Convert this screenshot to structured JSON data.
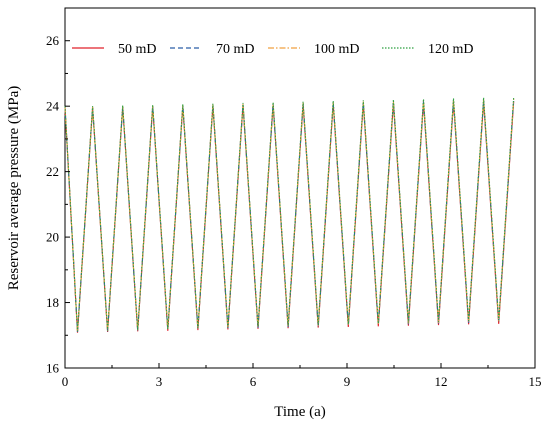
{
  "chart_data": {
    "type": "line",
    "xlabel": "Time (a)",
    "ylabel": "Reservoir average pressure (MPa)",
    "xlim": [
      0,
      15
    ],
    "ylim": [
      16,
      27
    ],
    "xticks": [
      "0",
      "3",
      "6",
      "9",
      "12",
      "15"
    ],
    "yticks": [
      "16",
      "18",
      "20",
      "22",
      "24",
      "26"
    ],
    "grid": false,
    "legend_position": "top",
    "cycle": {
      "count": 15,
      "first_trough_time": 0.4,
      "period": 0.96
    },
    "series": [
      {
        "name": "50 mD",
        "color": "#e0202a",
        "dash": "solid",
        "peak_start": 23.95,
        "peak_end": 24.15,
        "trough_start": 17.08,
        "trough_end": 17.35
      },
      {
        "name": "70 mD",
        "color": "#2a5ea8",
        "dash": "dashed",
        "peak_start": 23.97,
        "peak_end": 24.2,
        "trough_start": 17.1,
        "trough_end": 17.4
      },
      {
        "name": "100 mD",
        "color": "#f0a040",
        "dash": "dashdot",
        "peak_start": 23.98,
        "peak_end": 24.23,
        "trough_start": 17.11,
        "trough_end": 17.43
      },
      {
        "name": "120 mD",
        "color": "#2da040",
        "dash": "dotted",
        "peak_start": 24.0,
        "peak_end": 24.28,
        "trough_start": 17.12,
        "trough_end": 17.46
      }
    ]
  }
}
